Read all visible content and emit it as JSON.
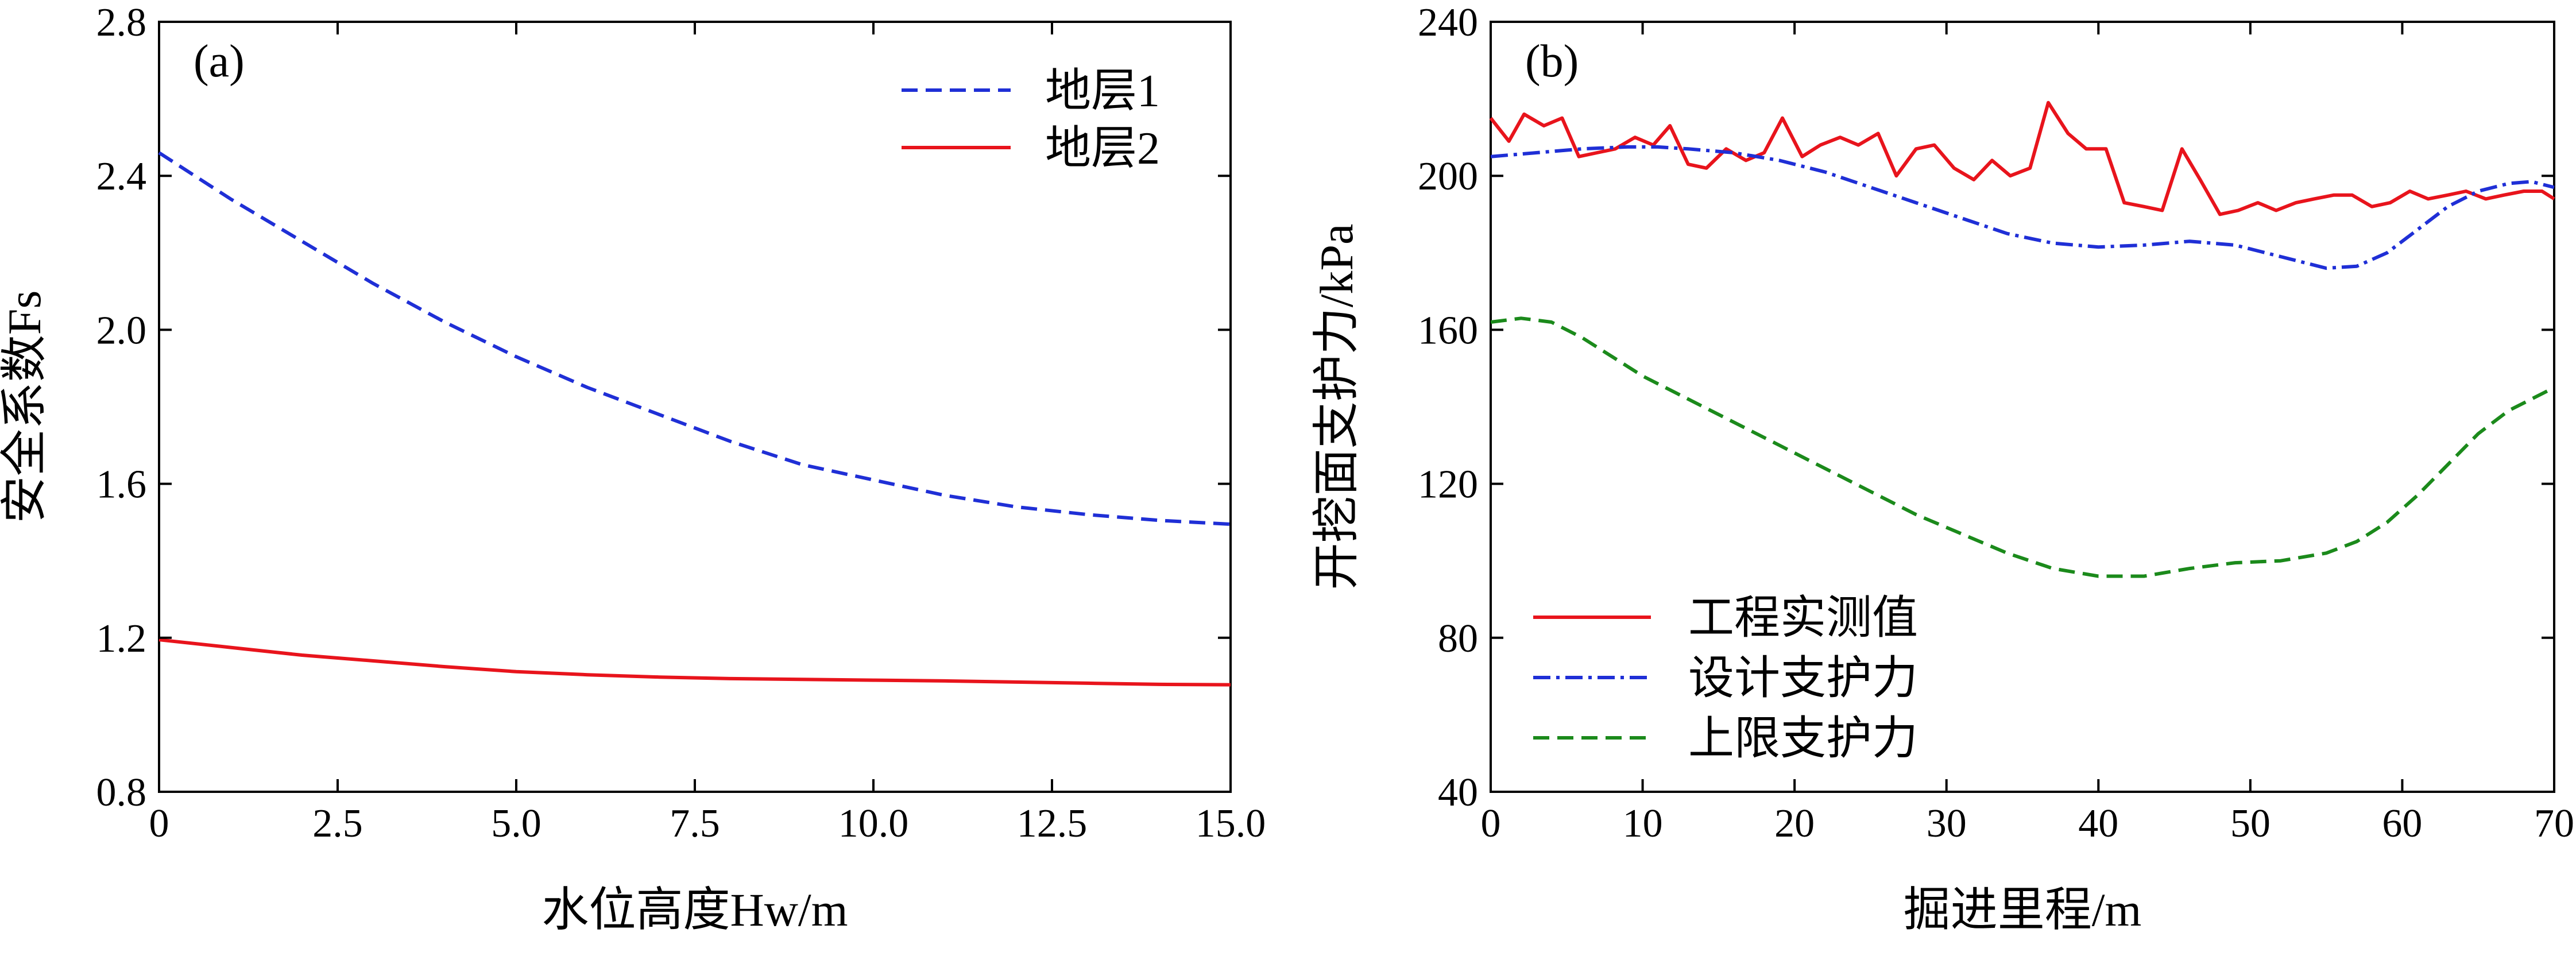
{
  "chart_data": [
    {
      "panel_label": "(a)",
      "type": "line",
      "xlabel": "水位高度Hw/m",
      "ylabel": "安全系数Fs",
      "xlim": [
        0,
        15
      ],
      "ylim": [
        0.8,
        2.8
      ],
      "xticks": [
        "0",
        "2.5",
        "5.0",
        "7.5",
        "10.0",
        "12.5",
        "15.0"
      ],
      "yticks": [
        "0.8",
        "1.2",
        "1.6",
        "2.0",
        "2.4",
        "2.8"
      ],
      "legend_position": "top-right",
      "series": [
        {
          "name": "地层1",
          "color": "#1f2fd6",
          "style": "dashed",
          "x": [
            0,
            1,
            2,
            3,
            4,
            5,
            6,
            7,
            8,
            9,
            10,
            11,
            12,
            13,
            14,
            15
          ],
          "y": [
            2.46,
            2.34,
            2.23,
            2.12,
            2.02,
            1.93,
            1.85,
            1.78,
            1.71,
            1.65,
            1.61,
            1.57,
            1.54,
            1.52,
            1.505,
            1.495
          ]
        },
        {
          "name": "地层2",
          "color": "#e8141c",
          "style": "solid",
          "x": [
            0,
            1,
            2,
            3,
            4,
            5,
            6,
            7,
            8,
            9,
            10,
            11,
            12,
            13,
            14,
            15
          ],
          "y": [
            1.195,
            1.175,
            1.155,
            1.14,
            1.125,
            1.112,
            1.104,
            1.098,
            1.094,
            1.092,
            1.09,
            1.088,
            1.085,
            1.082,
            1.079,
            1.078
          ]
        }
      ]
    },
    {
      "panel_label": "(b)",
      "type": "line",
      "xlabel": "掘进里程/m",
      "ylabel": "开挖面支护力/kPa",
      "xlim": [
        0,
        70
      ],
      "ylim": [
        40,
        240
      ],
      "xticks": [
        "0",
        "10",
        "20",
        "30",
        "40",
        "50",
        "60",
        "70"
      ],
      "yticks": [
        "40",
        "80",
        "120",
        "160",
        "200",
        "240"
      ],
      "legend_position": "bottom-left",
      "series": [
        {
          "name": "工程实测值",
          "color": "#e8141c",
          "style": "solid",
          "x": [
            0,
            1.2,
            2.2,
            3.5,
            4.7,
            5.8,
            7,
            8.2,
            9.5,
            10.7,
            11.8,
            13,
            14.2,
            15.5,
            16.8,
            18,
            19.2,
            20.5,
            21.7,
            23,
            24.2,
            25.5,
            26.7,
            28,
            29.2,
            30.5,
            31.8,
            33,
            34.2,
            35.5,
            36.7,
            38,
            39.2,
            40.5,
            41.7,
            43,
            44.2,
            45.5,
            46.7,
            48,
            49.2,
            50.5,
            51.7,
            53,
            54.2,
            55.5,
            56.7,
            58,
            59.2,
            60.5,
            61.7,
            63,
            64.2,
            65.5,
            66.7,
            68,
            69.2,
            70
          ],
          "y": [
            215,
            209,
            216,
            213,
            215,
            205,
            206,
            207,
            210,
            208,
            213,
            203,
            202,
            207,
            204,
            206,
            215,
            205,
            208,
            210,
            208,
            211,
            200,
            207,
            208,
            202,
            199,
            204,
            200,
            202,
            219,
            211,
            207,
            207,
            193,
            192,
            191,
            207,
            199,
            190,
            191,
            193,
            191,
            193,
            194,
            195,
            195,
            192,
            193,
            196,
            194,
            195,
            196,
            194,
            195,
            196,
            196,
            194
          ]
        },
        {
          "name": "设计支护力",
          "color": "#1f2fd6",
          "style": "dashdot",
          "x": [
            0,
            3,
            6,
            9,
            11,
            13,
            16,
            19,
            22,
            25,
            28,
            31,
            34,
            37,
            40,
            43,
            46,
            49,
            52,
            55,
            57,
            59,
            61,
            63,
            65,
            67,
            68.5,
            70
          ],
          "y": [
            205,
            206,
            207,
            207.5,
            207.5,
            207,
            206,
            204,
            201,
            197,
            193,
            189,
            185,
            182.5,
            181.5,
            182,
            183,
            182,
            179,
            176,
            176.5,
            180,
            186,
            192,
            196,
            198,
            198.5,
            197
          ]
        },
        {
          "name": "上限支护力",
          "color": "#1b8a1b",
          "style": "dashed",
          "x": [
            0,
            2,
            4,
            6,
            8,
            10,
            13,
            16,
            19,
            22,
            25,
            28,
            31,
            34,
            37,
            40,
            43,
            46,
            49,
            52,
            55,
            57,
            59,
            61,
            63,
            65,
            67,
            68.5,
            70
          ],
          "y": [
            162,
            163,
            162,
            158,
            153,
            148,
            142,
            136,
            130,
            124,
            118,
            112,
            107,
            102,
            98,
            96,
            96,
            98,
            99.5,
            100,
            102,
            105,
            110,
            117,
            125,
            133,
            139,
            142,
            145
          ]
        }
      ]
    }
  ]
}
